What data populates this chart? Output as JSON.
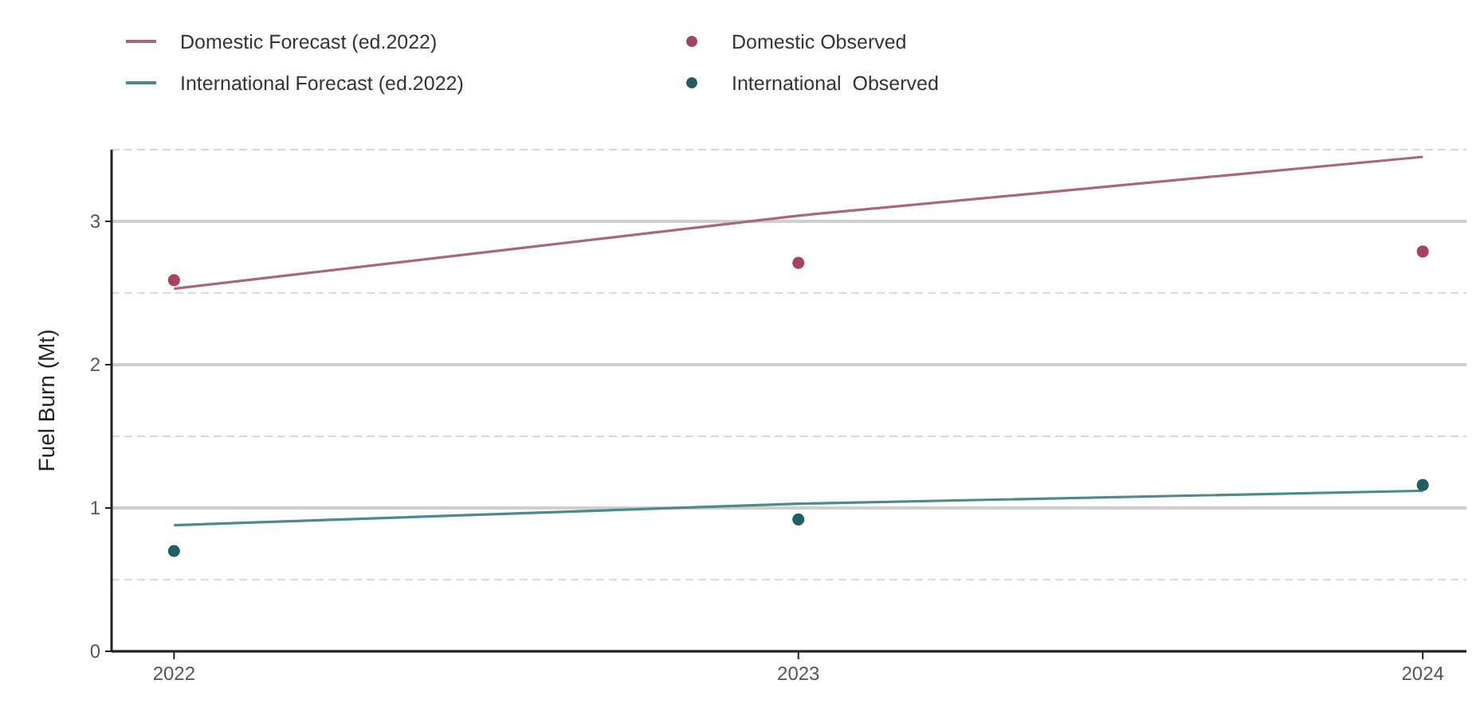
{
  "chart_data": {
    "type": "line",
    "ylabel": "Fuel Burn (Mt)",
    "x": [
      2022,
      2023,
      2024
    ],
    "xlim": [
      2021.9,
      2024.07
    ],
    "xticks": [
      2022,
      2023,
      2024
    ],
    "ylim": [
      0,
      3.5
    ],
    "yticks": [
      0,
      {
        "value": 0.5,
        "label": null
      },
      1,
      {
        "value": 1.5,
        "label": null
      },
      2,
      {
        "value": 2.5,
        "label": null
      },
      3,
      {
        "value": 3.5,
        "label": null
      }
    ],
    "grid": "y",
    "legend": "top left",
    "series": [
      {
        "name": "Domestic Forecast (ed.2022)",
        "color": "#a8677f",
        "values": [
          2.53,
          3.04,
          3.45
        ]
      },
      {
        "name": "International Forecast (ed.2022)",
        "color": "#4e8a8a",
        "values": [
          0.88,
          1.03,
          1.12
        ]
      },
      {
        "name": "Domestic Observed",
        "type": "scatter",
        "color": "#a8435f",
        "values": [
          2.59,
          2.71,
          2.79
        ]
      },
      {
        "name": "International  Observed",
        "type": "scatter",
        "color": "#1f5f62",
        "values": [
          0.7,
          0.92,
          1.16
        ]
      }
    ]
  }
}
